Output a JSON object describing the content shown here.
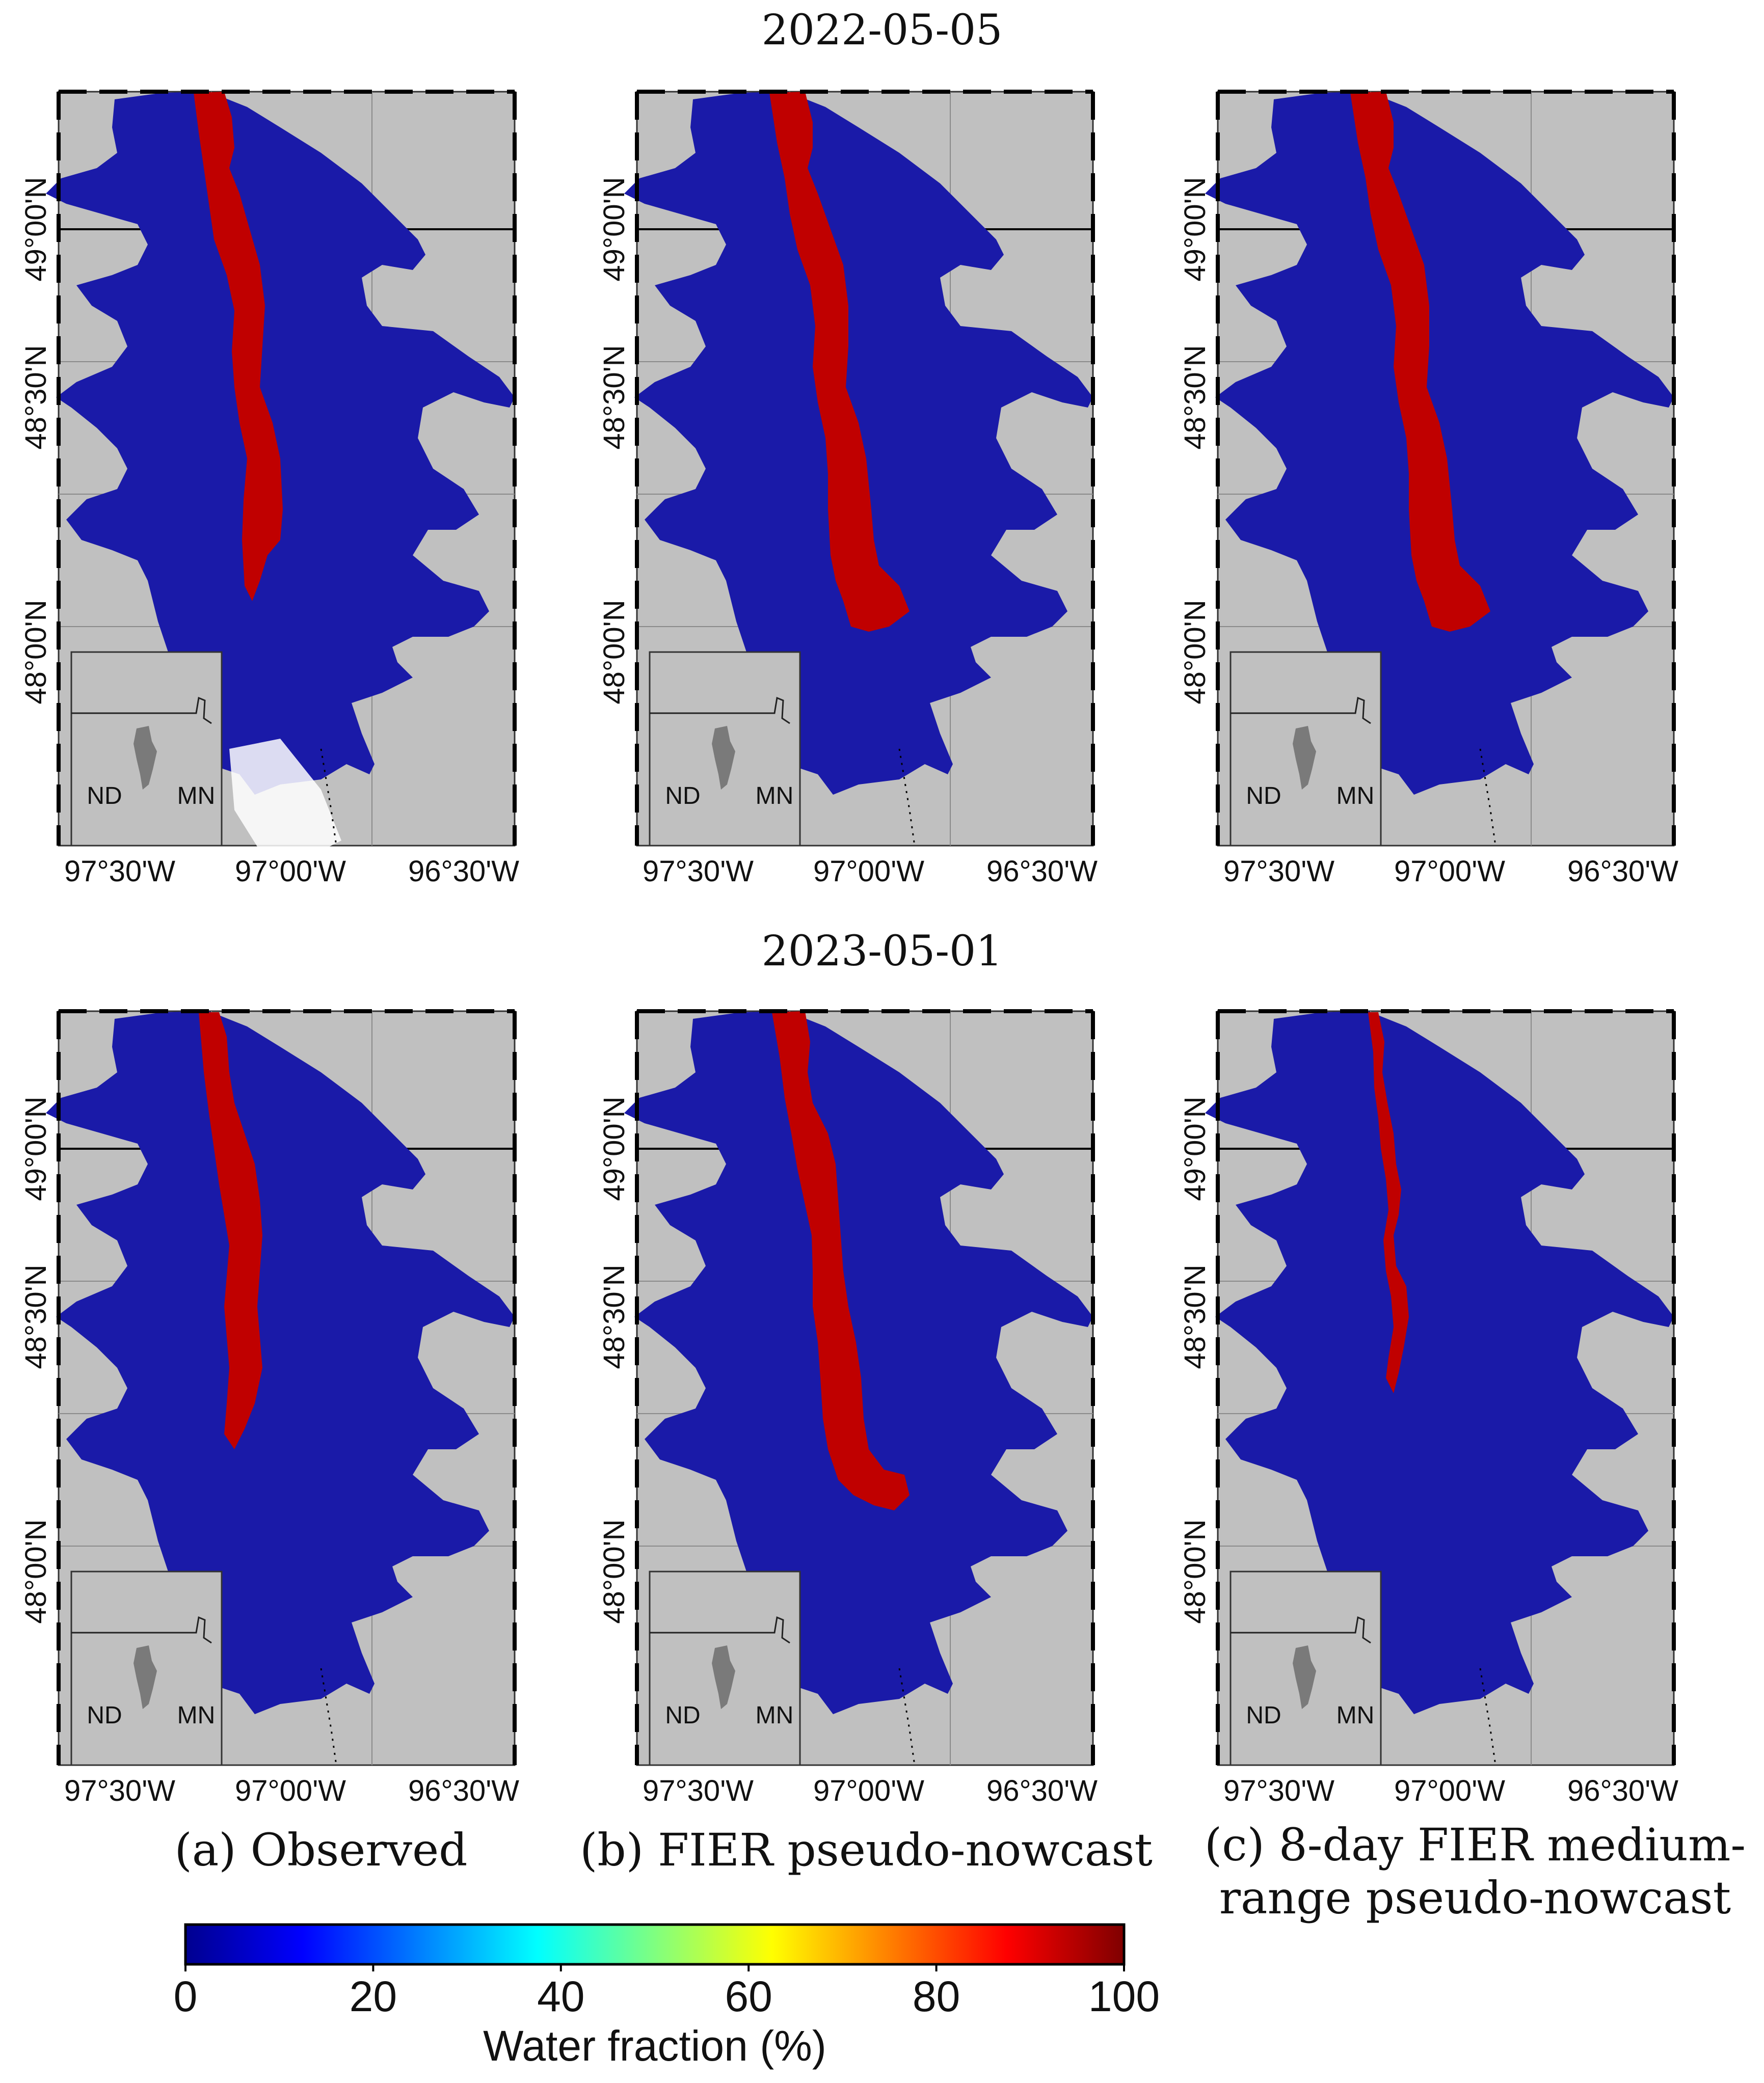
{
  "titles": {
    "row1": "2022-05-05",
    "row2": "2023-05-01"
  },
  "map_labels": {
    "lat_ticks": [
      "49°00'N",
      "48°30'N",
      "48°00'N"
    ],
    "lon_ticks": [
      "97°30'W",
      "97°00'W",
      "96°30'W"
    ],
    "inset_left": "ND",
    "inset_right": "MN"
  },
  "captions": {
    "a": "(a) Observed",
    "b": "(b) FIER pseudo-nowcast",
    "c_line1": "(c) 8-day FIER medium-",
    "c_line2": "range pseudo-nowcast"
  },
  "colorbar": {
    "title": "Water fraction (%)",
    "ticks": [
      "0",
      "20",
      "40",
      "60",
      "80",
      "100"
    ],
    "stops": [
      "#00008f",
      "#0000ff",
      "#00ffff",
      "#ffff00",
      "#ff0000",
      "#7f0000"
    ]
  },
  "colors": {
    "background_map": "#c0c0c0",
    "dry": "#1a1aa8",
    "water": "#c00000"
  }
}
